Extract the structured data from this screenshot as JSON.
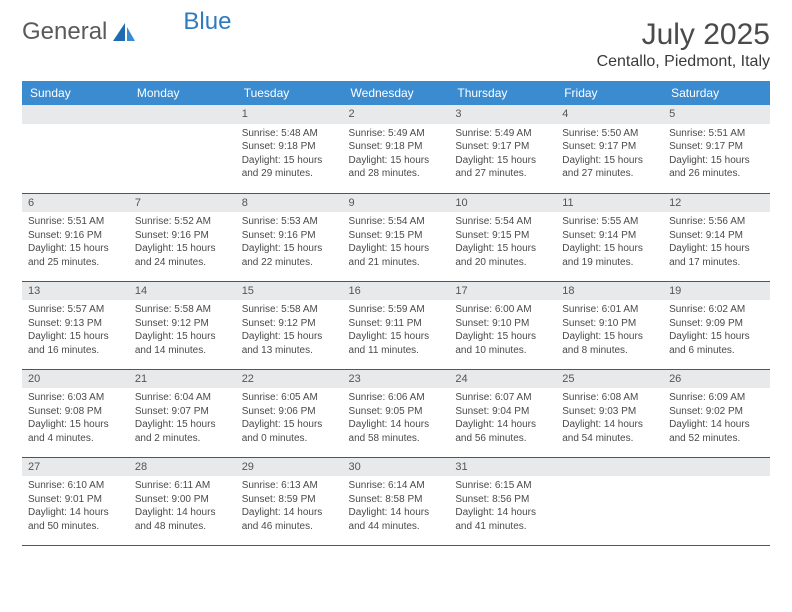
{
  "logo": {
    "text1": "General",
    "text2": "Blue"
  },
  "title": "July 2025",
  "location": "Centallo, Piedmont, Italy",
  "colors": {
    "header_bg": "#3b8bd0",
    "header_text": "#ffffff",
    "daynum_bg": "#e7e9eb",
    "row_border": "#2a5f8f",
    "body_text": "#4a4a4a",
    "logo_gray": "#5a5a5a",
    "logo_blue": "#2f7bc0"
  },
  "day_headers": [
    "Sunday",
    "Monday",
    "Tuesday",
    "Wednesday",
    "Thursday",
    "Friday",
    "Saturday"
  ],
  "weeks": [
    [
      null,
      null,
      {
        "n": "1",
        "sr": "5:48 AM",
        "ss": "9:18 PM",
        "dl": "15 hours and 29 minutes."
      },
      {
        "n": "2",
        "sr": "5:49 AM",
        "ss": "9:18 PM",
        "dl": "15 hours and 28 minutes."
      },
      {
        "n": "3",
        "sr": "5:49 AM",
        "ss": "9:17 PM",
        "dl": "15 hours and 27 minutes."
      },
      {
        "n": "4",
        "sr": "5:50 AM",
        "ss": "9:17 PM",
        "dl": "15 hours and 27 minutes."
      },
      {
        "n": "5",
        "sr": "5:51 AM",
        "ss": "9:17 PM",
        "dl": "15 hours and 26 minutes."
      }
    ],
    [
      {
        "n": "6",
        "sr": "5:51 AM",
        "ss": "9:16 PM",
        "dl": "15 hours and 25 minutes."
      },
      {
        "n": "7",
        "sr": "5:52 AM",
        "ss": "9:16 PM",
        "dl": "15 hours and 24 minutes."
      },
      {
        "n": "8",
        "sr": "5:53 AM",
        "ss": "9:16 PM",
        "dl": "15 hours and 22 minutes."
      },
      {
        "n": "9",
        "sr": "5:54 AM",
        "ss": "9:15 PM",
        "dl": "15 hours and 21 minutes."
      },
      {
        "n": "10",
        "sr": "5:54 AM",
        "ss": "9:15 PM",
        "dl": "15 hours and 20 minutes."
      },
      {
        "n": "11",
        "sr": "5:55 AM",
        "ss": "9:14 PM",
        "dl": "15 hours and 19 minutes."
      },
      {
        "n": "12",
        "sr": "5:56 AM",
        "ss": "9:14 PM",
        "dl": "15 hours and 17 minutes."
      }
    ],
    [
      {
        "n": "13",
        "sr": "5:57 AM",
        "ss": "9:13 PM",
        "dl": "15 hours and 16 minutes."
      },
      {
        "n": "14",
        "sr": "5:58 AM",
        "ss": "9:12 PM",
        "dl": "15 hours and 14 minutes."
      },
      {
        "n": "15",
        "sr": "5:58 AM",
        "ss": "9:12 PM",
        "dl": "15 hours and 13 minutes."
      },
      {
        "n": "16",
        "sr": "5:59 AM",
        "ss": "9:11 PM",
        "dl": "15 hours and 11 minutes."
      },
      {
        "n": "17",
        "sr": "6:00 AM",
        "ss": "9:10 PM",
        "dl": "15 hours and 10 minutes."
      },
      {
        "n": "18",
        "sr": "6:01 AM",
        "ss": "9:10 PM",
        "dl": "15 hours and 8 minutes."
      },
      {
        "n": "19",
        "sr": "6:02 AM",
        "ss": "9:09 PM",
        "dl": "15 hours and 6 minutes."
      }
    ],
    [
      {
        "n": "20",
        "sr": "6:03 AM",
        "ss": "9:08 PM",
        "dl": "15 hours and 4 minutes."
      },
      {
        "n": "21",
        "sr": "6:04 AM",
        "ss": "9:07 PM",
        "dl": "15 hours and 2 minutes."
      },
      {
        "n": "22",
        "sr": "6:05 AM",
        "ss": "9:06 PM",
        "dl": "15 hours and 0 minutes."
      },
      {
        "n": "23",
        "sr": "6:06 AM",
        "ss": "9:05 PM",
        "dl": "14 hours and 58 minutes."
      },
      {
        "n": "24",
        "sr": "6:07 AM",
        "ss": "9:04 PM",
        "dl": "14 hours and 56 minutes."
      },
      {
        "n": "25",
        "sr": "6:08 AM",
        "ss": "9:03 PM",
        "dl": "14 hours and 54 minutes."
      },
      {
        "n": "26",
        "sr": "6:09 AM",
        "ss": "9:02 PM",
        "dl": "14 hours and 52 minutes."
      }
    ],
    [
      {
        "n": "27",
        "sr": "6:10 AM",
        "ss": "9:01 PM",
        "dl": "14 hours and 50 minutes."
      },
      {
        "n": "28",
        "sr": "6:11 AM",
        "ss": "9:00 PM",
        "dl": "14 hours and 48 minutes."
      },
      {
        "n": "29",
        "sr": "6:13 AM",
        "ss": "8:59 PM",
        "dl": "14 hours and 46 minutes."
      },
      {
        "n": "30",
        "sr": "6:14 AM",
        "ss": "8:58 PM",
        "dl": "14 hours and 44 minutes."
      },
      {
        "n": "31",
        "sr": "6:15 AM",
        "ss": "8:56 PM",
        "dl": "14 hours and 41 minutes."
      },
      null,
      null
    ]
  ],
  "labels": {
    "sunrise": "Sunrise:",
    "sunset": "Sunset:",
    "daylight": "Daylight:"
  }
}
